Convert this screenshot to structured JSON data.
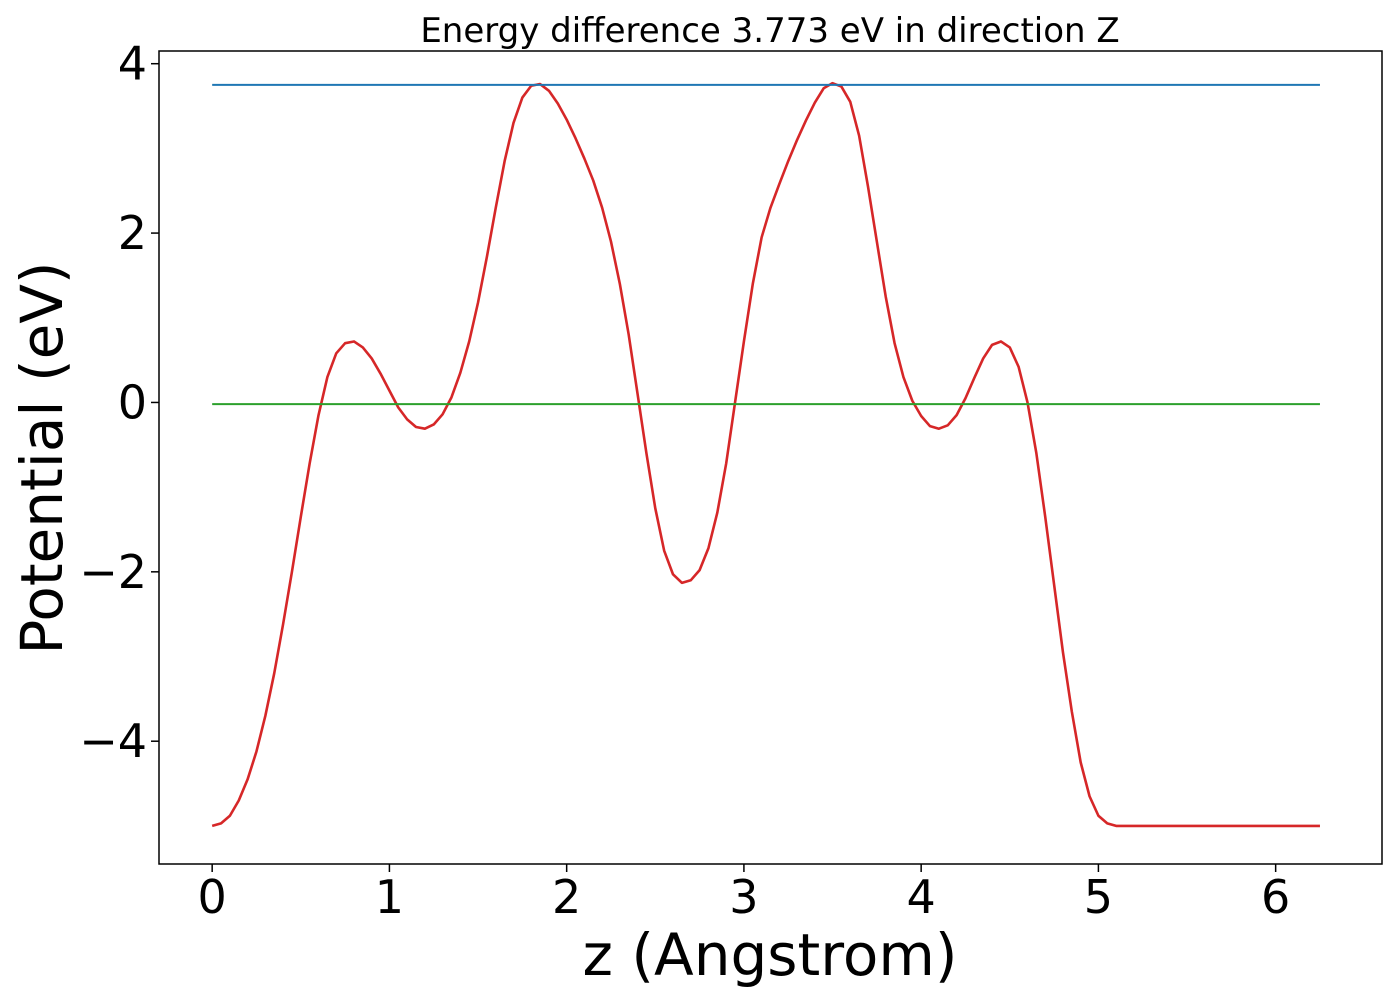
{
  "chart_data": {
    "type": "line",
    "title": "Energy difference 3.773 eV in direction Z",
    "xlabel": "z (Angstrom)",
    "ylabel": "Potential (eV)",
    "xlim": [
      -0.3,
      6.6
    ],
    "ylim": [
      -5.45,
      4.15
    ],
    "xticks": [
      0,
      1,
      2,
      3,
      4,
      5,
      6
    ],
    "xtick_labels": [
      "0",
      "1",
      "2",
      "3",
      "4",
      "5",
      "6"
    ],
    "yticks": [
      -4,
      -2,
      0,
      2,
      4
    ],
    "ytick_labels": [
      "−4",
      "−2",
      "0",
      "2",
      "4"
    ],
    "grid": false,
    "legend": "none",
    "series": [
      {
        "color": "#d62728",
        "x": [
          0.0,
          0.05,
          0.1,
          0.15,
          0.2,
          0.25,
          0.3,
          0.35,
          0.4,
          0.45,
          0.5,
          0.55,
          0.6,
          0.65,
          0.7,
          0.75,
          0.8,
          0.85,
          0.9,
          0.95,
          1.0,
          1.05,
          1.1,
          1.15,
          1.2,
          1.25,
          1.3,
          1.35,
          1.4,
          1.45,
          1.5,
          1.55,
          1.6,
          1.65,
          1.7,
          1.75,
          1.8,
          1.85,
          1.9,
          1.95,
          2.0,
          2.05,
          2.1,
          2.15,
          2.2,
          2.25,
          2.3,
          2.35,
          2.4,
          2.45,
          2.5,
          2.55,
          2.6,
          2.65,
          2.7,
          2.75,
          2.8,
          2.85,
          2.9,
          2.95,
          3.0,
          3.05,
          3.1,
          3.15,
          3.2,
          3.25,
          3.3,
          3.35,
          3.4,
          3.45,
          3.5,
          3.55,
          3.6,
          3.65,
          3.7,
          3.75,
          3.8,
          3.85,
          3.9,
          3.95,
          4.0,
          4.05,
          4.1,
          4.15,
          4.2,
          4.25,
          4.3,
          4.35,
          4.4,
          4.45,
          4.5,
          4.55,
          4.6,
          4.65,
          4.7,
          4.75,
          4.8,
          4.85,
          4.9,
          4.95,
          5.0,
          5.05,
          5.1,
          5.15,
          5.2,
          5.25,
          5.3,
          5.35,
          5.4,
          5.45,
          5.5,
          5.55,
          5.6,
          5.65,
          5.7,
          5.75,
          5.8,
          5.85,
          5.9,
          5.95,
          6.0,
          6.05,
          6.1,
          6.15,
          6.2,
          6.25
        ],
        "y": [
          -5.0,
          -4.97,
          -4.88,
          -4.7,
          -4.45,
          -4.12,
          -3.7,
          -3.2,
          -2.62,
          -2.0,
          -1.35,
          -0.72,
          -0.15,
          0.3,
          0.58,
          0.7,
          0.72,
          0.65,
          0.52,
          0.34,
          0.14,
          -0.06,
          -0.2,
          -0.29,
          -0.31,
          -0.26,
          -0.14,
          0.06,
          0.35,
          0.72,
          1.18,
          1.72,
          2.3,
          2.85,
          3.3,
          3.6,
          3.74,
          3.76,
          3.68,
          3.53,
          3.34,
          3.12,
          2.88,
          2.62,
          2.3,
          1.9,
          1.4,
          0.8,
          0.1,
          -0.6,
          -1.25,
          -1.75,
          -2.03,
          -2.13,
          -2.1,
          -1.98,
          -1.72,
          -1.3,
          -0.72,
          0.0,
          0.72,
          1.4,
          1.95,
          2.3,
          2.58,
          2.85,
          3.1,
          3.33,
          3.54,
          3.71,
          3.77,
          3.73,
          3.55,
          3.15,
          2.55,
          1.9,
          1.25,
          0.7,
          0.3,
          0.02,
          -0.16,
          -0.28,
          -0.31,
          -0.27,
          -0.15,
          0.05,
          0.29,
          0.52,
          0.68,
          0.72,
          0.65,
          0.42,
          0.0,
          -0.6,
          -1.35,
          -2.15,
          -2.95,
          -3.65,
          -4.25,
          -4.65,
          -4.88,
          -4.97,
          -5.0,
          -5.0,
          -5.0,
          -5.0,
          -5.0,
          -5.0,
          -5.0,
          -5.0,
          -5.0,
          -5.0,
          -5.0,
          -5.0,
          -5.0,
          -5.0,
          -5.0,
          -5.0,
          -5.0,
          -5.0,
          -5.0,
          -5.0,
          -5.0,
          -5.0,
          -5.0,
          -5.0
        ]
      },
      {
        "color": "#1f77b4",
        "x": [
          0.0,
          6.25
        ],
        "y": [
          3.75,
          3.75
        ]
      },
      {
        "color": "#2ca02c",
        "x": [
          0.0,
          6.25
        ],
        "y": [
          -0.02,
          -0.02
        ]
      }
    ]
  }
}
